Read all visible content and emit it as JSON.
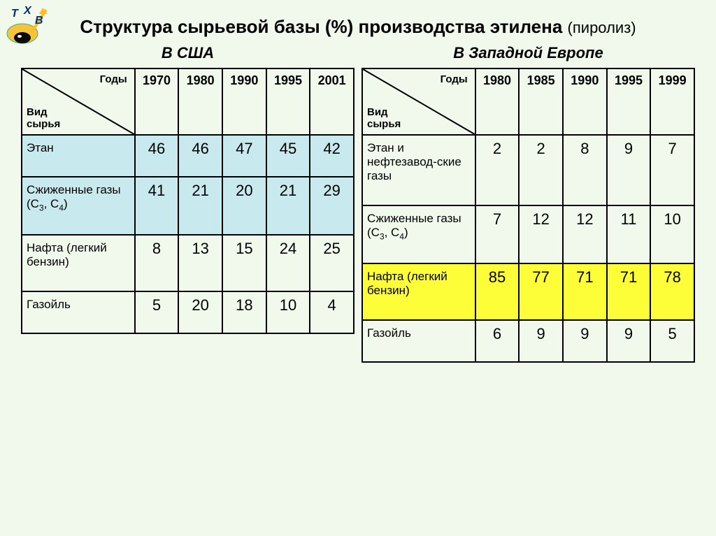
{
  "title_main": "Структура сырьевой базы (%) производства этилена",
  "title_sub": "(пиролиз)",
  "corner_years": "Годы",
  "corner_type_1": "Вид",
  "corner_type_2": "сырья",
  "colors": {
    "background": "#f1f8ec",
    "border": "#000000",
    "highlight_usa": "#c8e9ee",
    "highlight_eu": "#fdfd38",
    "plain": "#f1f8ec"
  },
  "tables": {
    "usa": {
      "caption": "В США",
      "years": [
        "1970",
        "1980",
        "1990",
        "1995",
        "2001"
      ],
      "rows": [
        {
          "label": "Этан",
          "values": [
            "46",
            "46",
            "47",
            "45",
            "42"
          ],
          "hl": true
        },
        {
          "label": "Сжиженные газы (C<sub>3</sub>, C<sub>4</sub>)",
          "values": [
            "41",
            "21",
            "20",
            "21",
            "29"
          ],
          "hl": true
        },
        {
          "label": "Нафта (легкий бензин)",
          "values": [
            "8",
            "13",
            "15",
            "24",
            "25"
          ],
          "hl": false
        },
        {
          "label": "Газойль",
          "values": [
            "5",
            "20",
            "18",
            "10",
            "4"
          ],
          "hl": false
        }
      ]
    },
    "eu": {
      "caption": "В Западной Европе",
      "years": [
        "1980",
        "1985",
        "1990",
        "1995",
        "1999"
      ],
      "rows": [
        {
          "label": "Этан и нефтезавод-ские газы",
          "values": [
            "2",
            "2",
            "8",
            "9",
            "7"
          ],
          "hl": false
        },
        {
          "label": "Сжиженные газы (C<sub>3</sub>, C<sub>4</sub>)",
          "values": [
            "7",
            "12",
            "12",
            "11",
            "10"
          ],
          "hl": false
        },
        {
          "label": "Нафта (легкий бензин)",
          "values": [
            "85",
            "77",
            "71",
            "71",
            "78"
          ],
          "hl": true
        },
        {
          "label": "Газойль",
          "values": [
            "6",
            "9",
            "9",
            "9",
            "5"
          ],
          "hl": false
        }
      ]
    }
  }
}
